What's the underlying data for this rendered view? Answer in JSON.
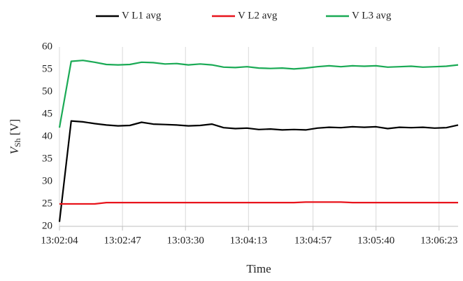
{
  "chart_data": {
    "type": "line",
    "x_label": "Time",
    "y_label": {
      "symbol": "V",
      "subscript": "Sh",
      "unit": "[V]"
    },
    "x": [
      "13:02:04",
      "13:02:12",
      "13:02:20",
      "13:02:28",
      "13:02:36",
      "13:02:44",
      "13:02:52",
      "13:03:00",
      "13:03:08",
      "13:03:16",
      "13:03:24",
      "13:03:32",
      "13:03:40",
      "13:03:48",
      "13:03:56",
      "13:04:04",
      "13:04:12",
      "13:04:20",
      "13:04:28",
      "13:04:36",
      "13:04:44",
      "13:04:52",
      "13:05:00",
      "13:05:08",
      "13:05:16",
      "13:05:24",
      "13:05:32",
      "13:05:40",
      "13:05:48",
      "13:05:56",
      "13:06:04",
      "13:06:12",
      "13:06:20",
      "13:06:28",
      "13:06:36"
    ],
    "series": [
      {
        "name": "V L1 avg",
        "color": "#000000",
        "values": [
          21,
          43.5,
          43.3,
          42.9,
          42.6,
          42.4,
          42.5,
          43.2,
          42.8,
          42.7,
          42.6,
          42.4,
          42.5,
          42.8,
          42.0,
          41.8,
          41.9,
          41.6,
          41.7,
          41.5,
          41.6,
          41.5,
          41.9,
          42.1,
          42.0,
          42.2,
          42.1,
          42.2,
          41.8,
          42.1,
          42.0,
          42.1,
          41.9,
          42.0,
          42.6
        ]
      },
      {
        "name": "V L2 avg",
        "color": "#e8141c",
        "values": [
          25,
          25,
          25,
          25,
          25.3,
          25.3,
          25.3,
          25.3,
          25.3,
          25.3,
          25.3,
          25.3,
          25.3,
          25.3,
          25.3,
          25.3,
          25.3,
          25.3,
          25.3,
          25.3,
          25.3,
          25.4,
          25.4,
          25.4,
          25.4,
          25.3,
          25.3,
          25.3,
          25.3,
          25.3,
          25.3,
          25.3,
          25.3,
          25.3,
          25.3
        ]
      },
      {
        "name": "V L3 avg",
        "color": "#1aaa55",
        "values": [
          42,
          56.8,
          57,
          56.6,
          56.1,
          56.0,
          56.1,
          56.6,
          56.5,
          56.2,
          56.3,
          56.0,
          56.2,
          56.0,
          55.5,
          55.4,
          55.6,
          55.3,
          55.2,
          55.3,
          55.1,
          55.3,
          55.6,
          55.8,
          55.6,
          55.8,
          55.7,
          55.8,
          55.5,
          55.6,
          55.7,
          55.5,
          55.6,
          55.7,
          56.0
        ]
      }
    ],
    "xlim": [
      "13:02:04",
      "13:06:36"
    ],
    "xticks": [
      "13:02:04",
      "13:02:47",
      "13:03:30",
      "13:04:13",
      "13:04:57",
      "13:05:40",
      "13:06:23"
    ],
    "ylim": [
      20,
      60
    ],
    "yticks": [
      20,
      25,
      30,
      35,
      40,
      45,
      50,
      55,
      60
    ],
    "grid": "x",
    "legend": "top"
  }
}
